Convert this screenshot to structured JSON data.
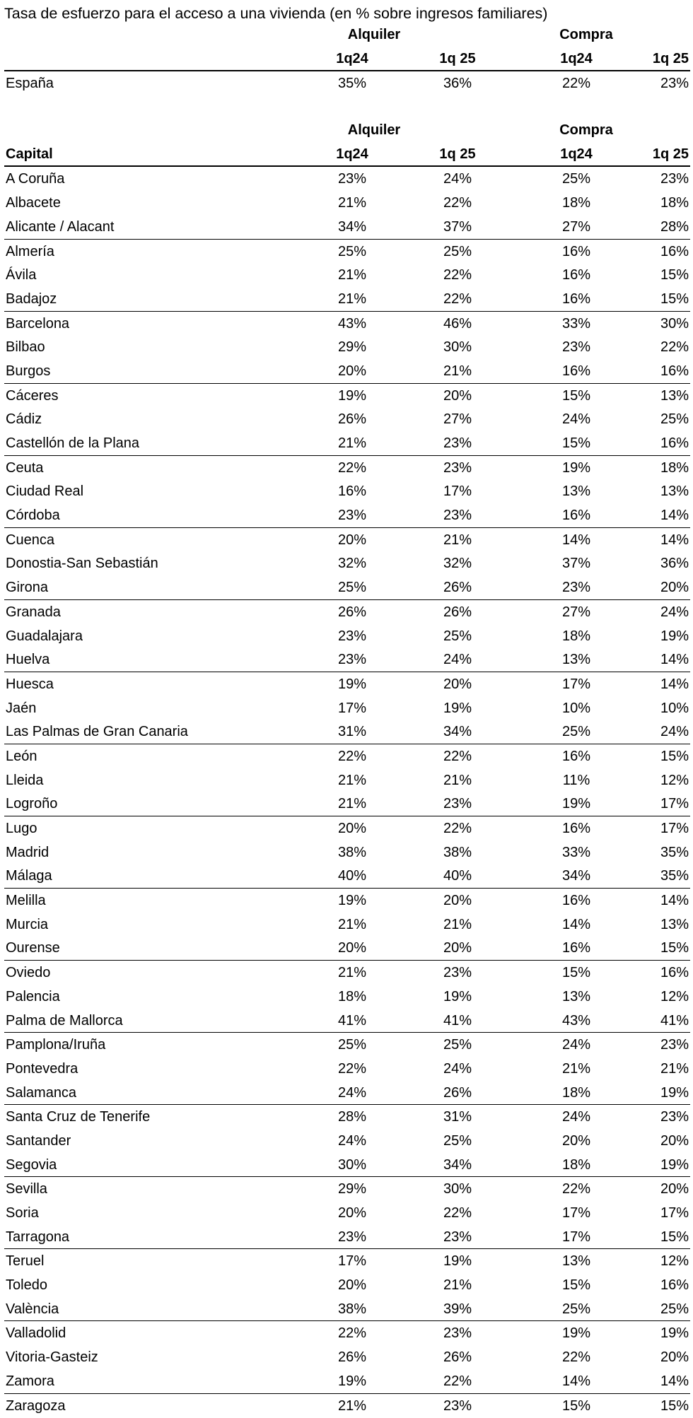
{
  "title": "Tasa de esfuerzo para el acceso a una vivienda (en % sobre ingresos familiares)",
  "groups": {
    "rent": "Alquiler",
    "purchase": "Compra"
  },
  "periods": [
    "1q24",
    "1q 25",
    "1q24",
    "1q 25"
  ],
  "first_col_label": "Capital",
  "national": {
    "name": "España",
    "values": [
      "35%",
      "36%",
      "22%",
      "23%"
    ]
  },
  "rows": [
    {
      "name": "A Coruña",
      "values": [
        "23%",
        "24%",
        "25%",
        "23%"
      ]
    },
    {
      "name": "Albacete",
      "values": [
        "21%",
        "22%",
        "18%",
        "18%"
      ]
    },
    {
      "name": "Alicante / Alacant",
      "values": [
        "34%",
        "37%",
        "27%",
        "28%"
      ]
    },
    {
      "name": "Almería",
      "values": [
        "25%",
        "25%",
        "16%",
        "16%"
      ]
    },
    {
      "name": "Ávila",
      "values": [
        "21%",
        "22%",
        "16%",
        "15%"
      ]
    },
    {
      "name": "Badajoz",
      "values": [
        "21%",
        "22%",
        "16%",
        "15%"
      ]
    },
    {
      "name": "Barcelona",
      "values": [
        "43%",
        "46%",
        "33%",
        "30%"
      ]
    },
    {
      "name": "Bilbao",
      "values": [
        "29%",
        "30%",
        "23%",
        "22%"
      ]
    },
    {
      "name": "Burgos",
      "values": [
        "20%",
        "21%",
        "16%",
        "16%"
      ]
    },
    {
      "name": "Cáceres",
      "values": [
        "19%",
        "20%",
        "15%",
        "13%"
      ]
    },
    {
      "name": "Cádiz",
      "values": [
        "26%",
        "27%",
        "24%",
        "25%"
      ]
    },
    {
      "name": "Castellón de la Plana",
      "values": [
        "21%",
        "23%",
        "15%",
        "16%"
      ]
    },
    {
      "name": "Ceuta",
      "values": [
        "22%",
        "23%",
        "19%",
        "18%"
      ]
    },
    {
      "name": "Ciudad Real",
      "values": [
        "16%",
        "17%",
        "13%",
        "13%"
      ]
    },
    {
      "name": "Córdoba",
      "values": [
        "23%",
        "23%",
        "16%",
        "14%"
      ]
    },
    {
      "name": "Cuenca",
      "values": [
        "20%",
        "21%",
        "14%",
        "14%"
      ]
    },
    {
      "name": "Donostia-San Sebastián",
      "values": [
        "32%",
        "32%",
        "37%",
        "36%"
      ]
    },
    {
      "name": "Girona",
      "values": [
        "25%",
        "26%",
        "23%",
        "20%"
      ]
    },
    {
      "name": "Granada",
      "values": [
        "26%",
        "26%",
        "27%",
        "24%"
      ]
    },
    {
      "name": "Guadalajara",
      "values": [
        "23%",
        "25%",
        "18%",
        "19%"
      ]
    },
    {
      "name": "Huelva",
      "values": [
        "23%",
        "24%",
        "13%",
        "14%"
      ]
    },
    {
      "name": "Huesca",
      "values": [
        "19%",
        "20%",
        "17%",
        "14%"
      ]
    },
    {
      "name": "Jaén",
      "values": [
        "17%",
        "19%",
        "10%",
        "10%"
      ]
    },
    {
      "name": "Las Palmas de Gran Canaria",
      "values": [
        "31%",
        "34%",
        "25%",
        "24%"
      ]
    },
    {
      "name": "León",
      "values": [
        "22%",
        "22%",
        "16%",
        "15%"
      ]
    },
    {
      "name": "Lleida",
      "values": [
        "21%",
        "21%",
        "11%",
        "12%"
      ]
    },
    {
      "name": "Logroño",
      "values": [
        "21%",
        "23%",
        "19%",
        "17%"
      ]
    },
    {
      "name": "Lugo",
      "values": [
        "20%",
        "22%",
        "16%",
        "17%"
      ]
    },
    {
      "name": "Madrid",
      "values": [
        "38%",
        "38%",
        "33%",
        "35%"
      ]
    },
    {
      "name": "Málaga",
      "values": [
        "40%",
        "40%",
        "34%",
        "35%"
      ]
    },
    {
      "name": "Melilla",
      "values": [
        "19%",
        "20%",
        "16%",
        "14%"
      ]
    },
    {
      "name": "Murcia",
      "values": [
        "21%",
        "21%",
        "14%",
        "13%"
      ]
    },
    {
      "name": "Ourense",
      "values": [
        "20%",
        "20%",
        "16%",
        "15%"
      ]
    },
    {
      "name": "Oviedo",
      "values": [
        "21%",
        "23%",
        "15%",
        "16%"
      ]
    },
    {
      "name": "Palencia",
      "values": [
        "18%",
        "19%",
        "13%",
        "12%"
      ]
    },
    {
      "name": "Palma de Mallorca",
      "values": [
        "41%",
        "41%",
        "43%",
        "41%"
      ]
    },
    {
      "name": "Pamplona/Iruña",
      "values": [
        "25%",
        "25%",
        "24%",
        "23%"
      ]
    },
    {
      "name": "Pontevedra",
      "values": [
        "22%",
        "24%",
        "21%",
        "21%"
      ]
    },
    {
      "name": "Salamanca",
      "values": [
        "24%",
        "26%",
        "18%",
        "19%"
      ]
    },
    {
      "name": "Santa Cruz de Tenerife",
      "values": [
        "28%",
        "31%",
        "24%",
        "23%"
      ]
    },
    {
      "name": "Santander",
      "values": [
        "24%",
        "25%",
        "20%",
        "20%"
      ]
    },
    {
      "name": "Segovia",
      "values": [
        "30%",
        "34%",
        "18%",
        "19%"
      ]
    },
    {
      "name": "Sevilla",
      "values": [
        "29%",
        "30%",
        "22%",
        "20%"
      ]
    },
    {
      "name": "Soria",
      "values": [
        "20%",
        "22%",
        "17%",
        "17%"
      ]
    },
    {
      "name": "Tarragona",
      "values": [
        "23%",
        "23%",
        "17%",
        "15%"
      ]
    },
    {
      "name": "Teruel",
      "values": [
        "17%",
        "19%",
        "13%",
        "12%"
      ]
    },
    {
      "name": "Toledo",
      "values": [
        "20%",
        "21%",
        "15%",
        "16%"
      ]
    },
    {
      "name": "València",
      "values": [
        "38%",
        "39%",
        "25%",
        "25%"
      ]
    },
    {
      "name": "Valladolid",
      "values": [
        "22%",
        "23%",
        "19%",
        "19%"
      ]
    },
    {
      "name": "Vitoria-Gasteiz",
      "values": [
        "26%",
        "26%",
        "22%",
        "20%"
      ]
    },
    {
      "name": "Zamora",
      "values": [
        "19%",
        "22%",
        "14%",
        "14%"
      ]
    },
    {
      "name": "Zaragoza",
      "values": [
        "21%",
        "23%",
        "15%",
        "15%"
      ]
    }
  ]
}
